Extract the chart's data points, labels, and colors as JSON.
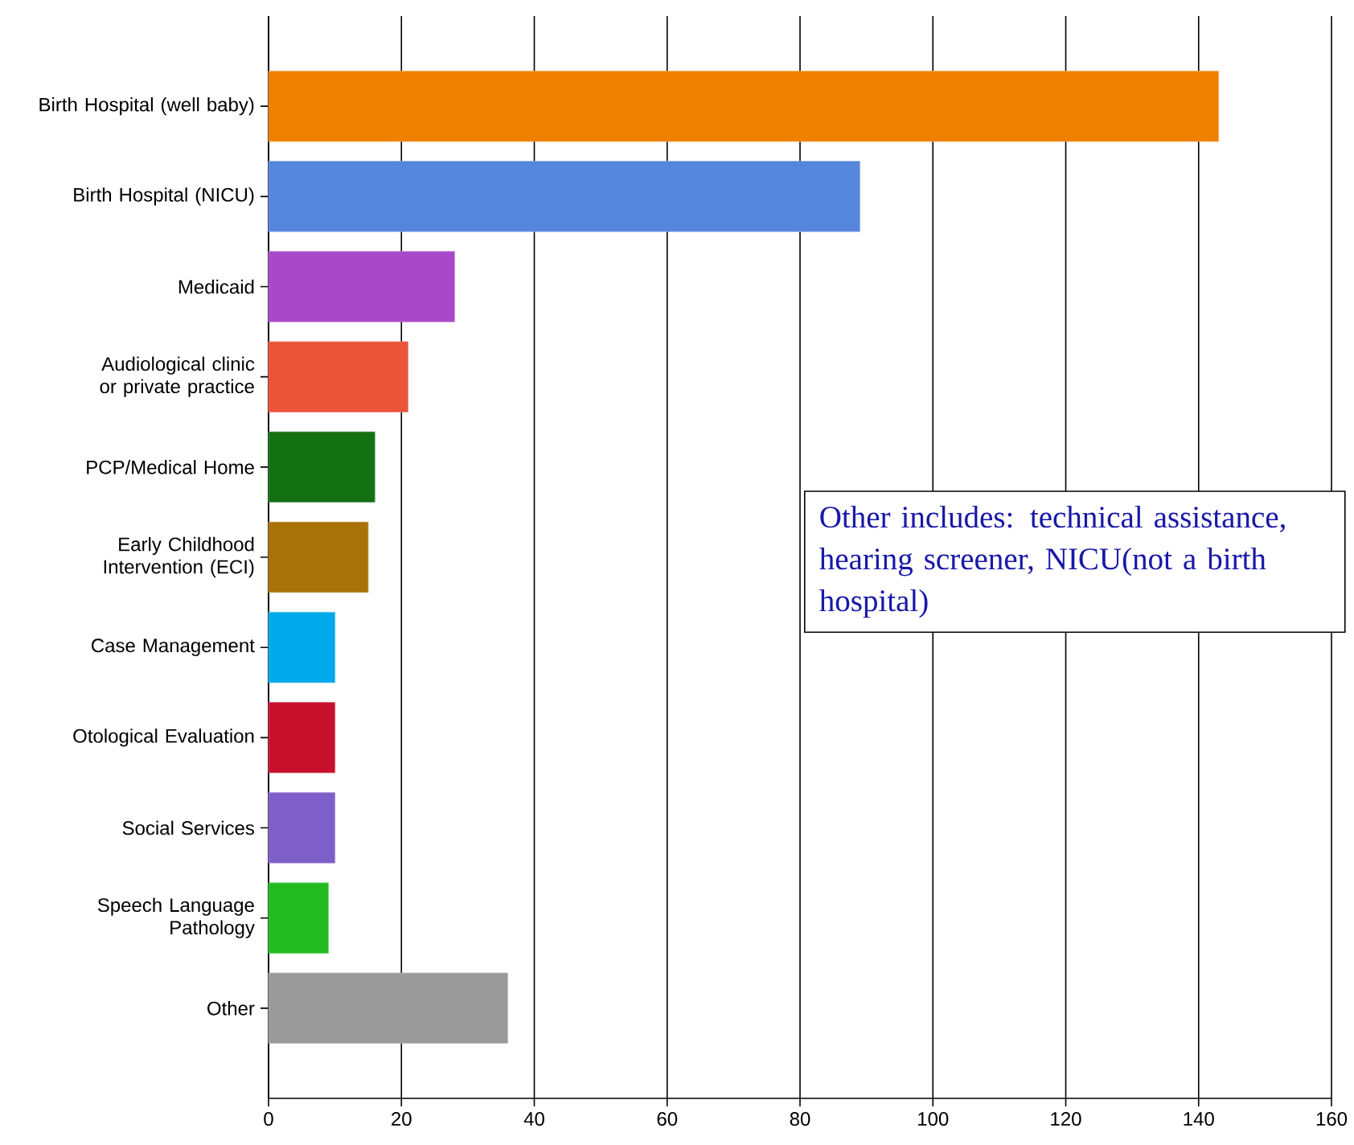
{
  "chart_data": {
    "type": "bar",
    "orientation": "horizontal",
    "categories": [
      "Birth Hospital (well baby)",
      "Birth Hospital (NICU)",
      "Medicaid",
      "Audiological clinic or private practice",
      "PCP/Medical Home",
      "Early Childhood Intervention (ECI)",
      "Case Management",
      "Otological Evaluation",
      "Social Services",
      "Speech Language Pathology",
      "Other"
    ],
    "values": [
      143,
      89,
      28,
      21,
      16,
      15,
      10,
      10,
      10,
      9,
      36
    ],
    "colors": [
      "#f08000",
      "#5585dc",
      "#a848c8",
      "#ea5438",
      "#137013",
      "#a87208",
      "#00aaea",
      "#c8102c",
      "#7e5ec8",
      "#22bb22",
      "#9a9a9a"
    ],
    "xlim": [
      0,
      160
    ],
    "xticks": [
      0,
      20,
      40,
      60,
      80,
      100,
      120,
      140,
      160
    ],
    "grid": "x",
    "annotations": [
      "Other includes: technical assistance, hearing screener, NICU(not a birth hospital)"
    ]
  }
}
